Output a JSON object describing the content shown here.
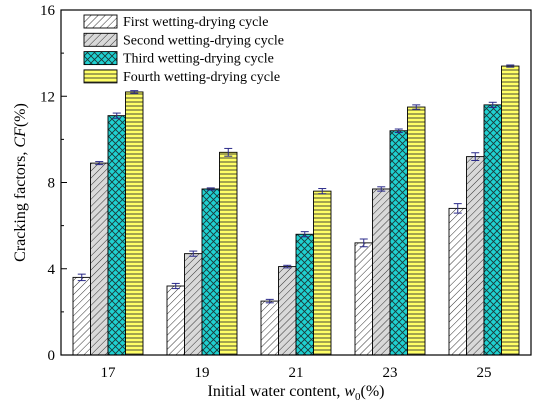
{
  "chart_data": {
    "type": "bar",
    "title": "",
    "xlabel": {
      "prefix": "Initial water content, ",
      "var": "w",
      "sub": "0",
      "suffix": "(%)"
    },
    "ylabel": {
      "prefix": "Cracking factors, ",
      "var": "CF",
      "suffix": "(%)"
    },
    "categories": [
      "17",
      "19",
      "21",
      "23",
      "25"
    ],
    "ylim": [
      0,
      16
    ],
    "yticks": [
      0,
      4,
      8,
      12,
      16
    ],
    "legend_position": "top-left",
    "series": [
      {
        "name": "First wetting-drying cycle",
        "values": [
          3.6,
          3.2,
          2.5,
          5.2,
          6.8
        ],
        "errors": [
          0.15,
          0.12,
          0.08,
          0.18,
          0.22
        ],
        "color": "#ffffff",
        "pattern": "diag-thin"
      },
      {
        "name": "Second wetting-drying cycle",
        "values": [
          8.9,
          4.7,
          4.1,
          7.7,
          9.2
        ],
        "errors": [
          0.07,
          0.12,
          0.06,
          0.1,
          0.18
        ],
        "color": "#d9d9d9",
        "pattern": "diag-grey"
      },
      {
        "name": "Third wetting-drying cycle",
        "values": [
          11.1,
          7.7,
          5.6,
          10.4,
          11.6
        ],
        "errors": [
          0.12,
          0.05,
          0.12,
          0.08,
          0.12
        ],
        "color": "#1fd1d1",
        "pattern": "cross"
      },
      {
        "name": "Fourth wetting-drying cycle",
        "values": [
          12.2,
          9.4,
          7.6,
          11.5,
          13.4
        ],
        "errors": [
          0.06,
          0.18,
          0.12,
          0.1,
          0.05
        ],
        "color": "#ffff66",
        "pattern": "horiz"
      }
    ]
  }
}
